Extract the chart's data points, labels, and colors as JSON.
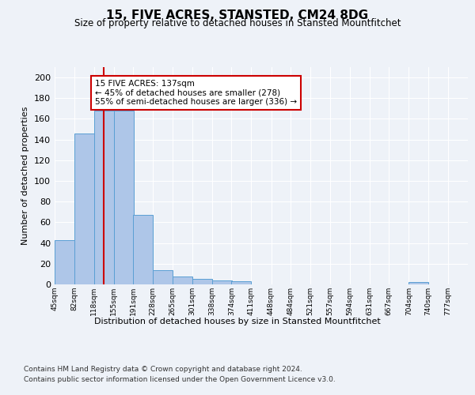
{
  "title": "15, FIVE ACRES, STANSTED, CM24 8DG",
  "subtitle": "Size of property relative to detached houses in Stansted Mountfitchet",
  "xlabel": "Distribution of detached houses by size in Stansted Mountfitchet",
  "ylabel": "Number of detached properties",
  "bar_edges": [
    45,
    82,
    118,
    155,
    191,
    228,
    265,
    301,
    338,
    374,
    411,
    448,
    484,
    521,
    557,
    594,
    631,
    667,
    704,
    740,
    777
  ],
  "bar_values": [
    43,
    146,
    168,
    168,
    67,
    14,
    8,
    5,
    4,
    3,
    0,
    0,
    0,
    0,
    0,
    0,
    0,
    0,
    2,
    0,
    0
  ],
  "bar_color": "#aec6e8",
  "bar_edge_color": "#5a9fd4",
  "property_size": 137,
  "vline_color": "#cc0000",
  "annotation_text": "15 FIVE ACRES: 137sqm\n← 45% of detached houses are smaller (278)\n55% of semi-detached houses are larger (336) →",
  "annotation_box_color": "#ffffff",
  "annotation_border_color": "#cc0000",
  "ylim": [
    0,
    210
  ],
  "yticks": [
    0,
    20,
    40,
    60,
    80,
    100,
    120,
    140,
    160,
    180,
    200
  ],
  "footnote1": "Contains HM Land Registry data © Crown copyright and database right 2024.",
  "footnote2": "Contains public sector information licensed under the Open Government Licence v3.0.",
  "background_color": "#eef2f8",
  "plot_bg_color": "#eef2f8"
}
